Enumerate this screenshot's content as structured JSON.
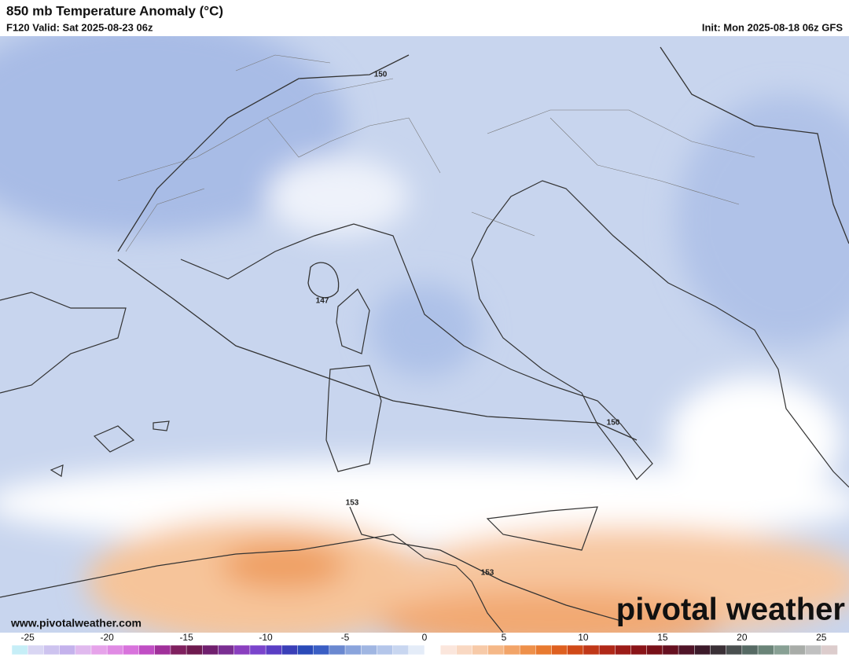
{
  "header": {
    "title": "850 mb Temperature Anomaly (°C)",
    "valid": "F120 Valid: Sat 2025-08-23 06z",
    "init": "Init: Mon 2025-08-18 06z GFS"
  },
  "map": {
    "contour_labels": [
      "150",
      "147",
      "150",
      "153",
      "153"
    ]
  },
  "footer": {
    "url": "www.pivotalweather.com",
    "logo": "pivotal weather"
  },
  "colorbar": {
    "range": [
      -26,
      26
    ],
    "ticks": [
      -25,
      -20,
      -15,
      -10,
      -5,
      0,
      5,
      10,
      15,
      20,
      25
    ],
    "colors": [
      "#c6eef7",
      "#d9d6f3",
      "#cdc3ef",
      "#c4b2ec",
      "#e0b9ee",
      "#e6a3ea",
      "#e08be4",
      "#d873dc",
      "#c04ec4",
      "#a0309a",
      "#80205f",
      "#6e1a4f",
      "#701f6e",
      "#7a2e92",
      "#8a3fbf",
      "#7a44cc",
      "#5a3ec4",
      "#3a3fb8",
      "#2a4ab8",
      "#3a5ec4",
      "#6a88d0",
      "#8aa4dc",
      "#a0b6e2",
      "#b4c6ea",
      "#c8d6f0",
      "#e4ecf8",
      "#ffffff",
      "#fbe6dc",
      "#f9d8c2",
      "#f7caa8",
      "#f5b888",
      "#f2a468",
      "#ee904a",
      "#e87a30",
      "#de6020",
      "#d04a18",
      "#c03818",
      "#b02818",
      "#9c1c18",
      "#8a1418",
      "#781018",
      "#661020",
      "#501428",
      "#3c1a2a",
      "#3a3036",
      "#4a5050",
      "#566a64",
      "#6a8478",
      "#88a094",
      "#a8aca8",
      "#c0c0c0",
      "#dccccc"
    ]
  }
}
